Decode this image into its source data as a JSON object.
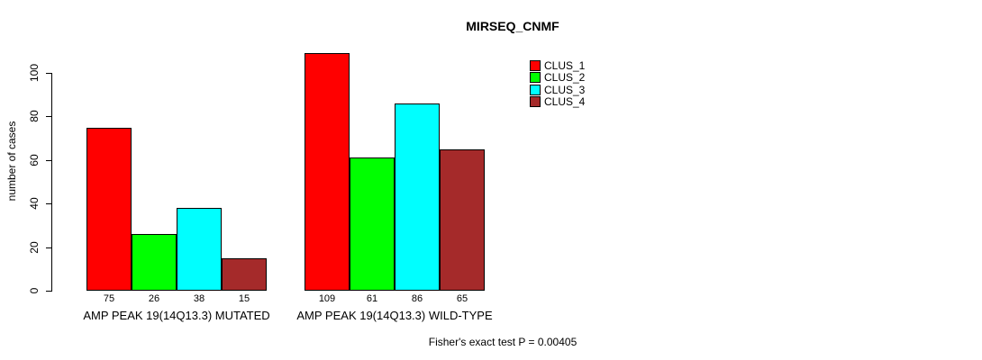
{
  "title": "MIRSEQ_CNMF",
  "footer": "Fisher's exact test P = 0.00405",
  "y_axis": {
    "label": "number of cases",
    "ticks": [
      0,
      20,
      40,
      60,
      80,
      100
    ]
  },
  "legend": [
    {
      "label": "CLUS_1",
      "color": "#FF0000"
    },
    {
      "label": "CLUS_2",
      "color": "#00FF00"
    },
    {
      "label": "CLUS_3",
      "color": "#00FFFF"
    },
    {
      "label": "CLUS_4",
      "color": "#A52A2A"
    }
  ],
  "chart_data": {
    "type": "bar",
    "title": "MIRSEQ_CNMF",
    "xlabel": "",
    "ylabel": "number of cases",
    "ylim": [
      0,
      109
    ],
    "grid": false,
    "legend_position": "top-right",
    "categories": [
      "AMP PEAK 19(14Q13.3) MUTATED",
      "AMP PEAK 19(14Q13.3) WILD-TYPE"
    ],
    "series": [
      {
        "name": "CLUS_1",
        "color": "#FF0000",
        "values": [
          75,
          109
        ]
      },
      {
        "name": "CLUS_2",
        "color": "#00FF00",
        "values": [
          26,
          61
        ]
      },
      {
        "name": "CLUS_3",
        "color": "#00FFFF",
        "values": [
          38,
          86
        ]
      },
      {
        "name": "CLUS_4",
        "color": "#A52A2A",
        "values": [
          15,
          65
        ]
      }
    ],
    "bar_value_labels": [
      [
        75,
        26,
        38,
        15
      ],
      [
        109,
        61,
        86,
        65
      ]
    ],
    "annotation": "Fisher's exact test P = 0.00405"
  }
}
